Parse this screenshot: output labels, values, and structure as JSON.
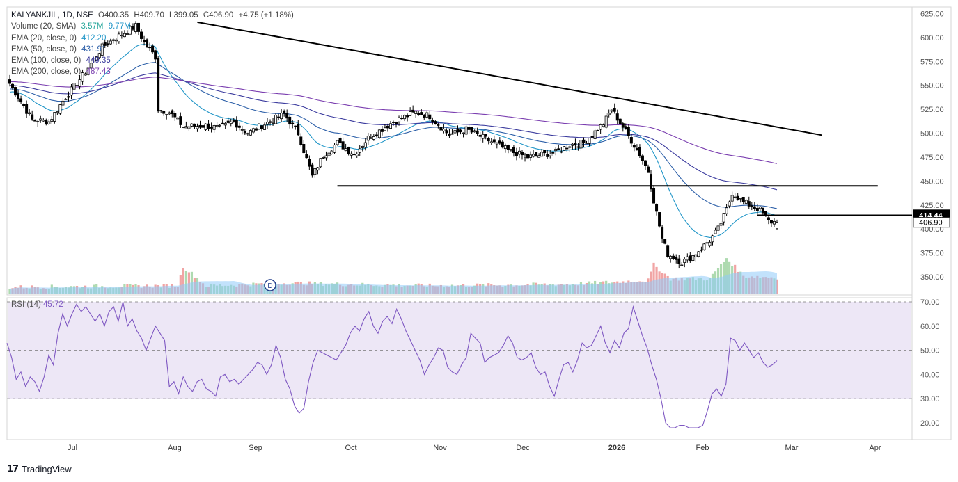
{
  "header": {
    "symbol": "KALYANKJIL, 1D, NSE",
    "open": "O400.35",
    "high": "H409.70",
    "low": "L399.05",
    "close": "C406.90",
    "change": "+4.75 (+1.18%)"
  },
  "legend": {
    "volume_label": "Volume (20, SMA)",
    "volume_val1": "3.57M",
    "volume_val2": "9.77M",
    "ema20_label": "EMA (20, close, 0)",
    "ema20_val": "412.20",
    "ema50_label": "EMA (50, close, 0)",
    "ema50_val": "431.91",
    "ema100_label": "EMA (100, close, 0)",
    "ema100_val": "449.35",
    "ema200_label": "EMA (200, close, 0)",
    "ema200_val": "487.43"
  },
  "rsi_legend": {
    "label": "RSI (14)",
    "value": "45.72"
  },
  "price_tags": {
    "level": "414.44",
    "last": "406.90"
  },
  "event_marker": "D",
  "footer": {
    "brand": "TradingView"
  },
  "colors": {
    "up_candle": "#ffffff",
    "down_candle": "#000000",
    "ema20": "#2196c8",
    "ema50": "#2c5fa8",
    "ema100": "#3b3b9e",
    "ema200": "#7b3fb0",
    "rsi_line": "#7e57c2",
    "rsi_band": "#ede7f6",
    "vol_up": "#a5d6a7",
    "vol_down": "#ef9a9a",
    "vol_sma": "#90caf9"
  },
  "chart_data": [
    {
      "type": "candlestick",
      "title": "KALYANKJIL, 1D, NSE",
      "ylim": [
        336,
        628
      ],
      "y_ticks": [
        "625.00",
        "600.00",
        "575.00",
        "550.00",
        "525.00",
        "500.00",
        "475.00",
        "450.00",
        "425.00",
        "400.00",
        "375.00",
        "350.00"
      ],
      "x_ticks": [
        "Jul",
        "Aug",
        "Sep",
        "Oct",
        "Nov",
        "Dec",
        "2026",
        "Feb",
        "Mar",
        "Apr"
      ],
      "anchors_close": [
        [
          0,
          552
        ],
        [
          8,
          514
        ],
        [
          14,
          512
        ],
        [
          20,
          538
        ],
        [
          26,
          560
        ],
        [
          33,
          590
        ],
        [
          38,
          600
        ],
        [
          45,
          612
        ],
        [
          48,
          595
        ],
        [
          52,
          580
        ],
        [
          53,
          525
        ],
        [
          57,
          522
        ],
        [
          62,
          507
        ],
        [
          70,
          508
        ],
        [
          75,
          505
        ],
        [
          80,
          512
        ],
        [
          85,
          500
        ],
        [
          90,
          508
        ],
        [
          98,
          520
        ],
        [
          103,
          500
        ],
        [
          108,
          455
        ],
        [
          112,
          477
        ],
        [
          117,
          490
        ],
        [
          123,
          478
        ],
        [
          128,
          495
        ],
        [
          137,
          512
        ],
        [
          145,
          522
        ],
        [
          150,
          518
        ],
        [
          157,
          498
        ],
        [
          163,
          504
        ],
        [
          170,
          494
        ],
        [
          178,
          482
        ],
        [
          185,
          475
        ],
        [
          195,
          480
        ],
        [
          200,
          488
        ],
        [
          205,
          490
        ],
        [
          212,
          510
        ],
        [
          215,
          525
        ],
        [
          220,
          502
        ],
        [
          225,
          478
        ],
        [
          228,
          460
        ],
        [
          230,
          430
        ],
        [
          233,
          390
        ],
        [
          235,
          374
        ],
        [
          240,
          365
        ],
        [
          244,
          372
        ],
        [
          250,
          388
        ],
        [
          253,
          400
        ],
        [
          256,
          420
        ],
        [
          258,
          438
        ],
        [
          262,
          428
        ],
        [
          268,
          420
        ],
        [
          271,
          408
        ],
        [
          274,
          406.9
        ]
      ],
      "anchors_volume": [
        [
          0,
          4
        ],
        [
          60,
          5
        ],
        [
          62,
          19
        ],
        [
          70,
          5
        ],
        [
          100,
          7
        ],
        [
          120,
          6
        ],
        [
          150,
          5
        ],
        [
          200,
          6
        ],
        [
          228,
          9
        ],
        [
          230,
          20
        ],
        [
          236,
          10
        ],
        [
          250,
          10
        ],
        [
          256,
          25
        ],
        [
          262,
          12
        ],
        [
          274,
          11
        ]
      ],
      "ema": [
        {
          "name": "EMA (20, close, 0)",
          "value": 412.2
        },
        {
          "name": "EMA (50, close, 0)",
          "value": 431.91
        },
        {
          "name": "EMA (100, close, 0)",
          "value": 449.35
        },
        {
          "name": "EMA (200, close, 0)",
          "value": 487.43
        }
      ],
      "lines": {
        "downtrend": [
          [
            67,
            616
          ],
          [
            290,
            498
          ]
        ],
        "support": [
          [
            117,
            445
          ],
          [
            310,
            445
          ]
        ],
        "resistance_level": [
          [
            267,
            414.44
          ],
          [
            320,
            414.44
          ]
        ]
      }
    },
    {
      "type": "line",
      "title": "RSI (14)",
      "ylim": [
        14,
        72
      ],
      "y_ticks": [
        "70.00",
        "60.00",
        "50.00",
        "40.00",
        "30.00",
        "20.00"
      ],
      "bands": [
        30,
        50,
        70
      ],
      "series": [
        {
          "name": "RSI (14)",
          "values": [
            53,
            47,
            38,
            41,
            35,
            39,
            37,
            33,
            39,
            48,
            44,
            57,
            65,
            60,
            65,
            69,
            66,
            68,
            65,
            62,
            65,
            60,
            66,
            68,
            62,
            70,
            60,
            63,
            58,
            55,
            50,
            55,
            60,
            57,
            54,
            35,
            37,
            32,
            39,
            35,
            33,
            37,
            38,
            34,
            33,
            31,
            39,
            40,
            37,
            38,
            36,
            38,
            40,
            42,
            45,
            44,
            40,
            44,
            52,
            47,
            38,
            34,
            27,
            24,
            26,
            37,
            45,
            50,
            49,
            48,
            47,
            46,
            49,
            52,
            57,
            60,
            58,
            63,
            66,
            60,
            57,
            62,
            64,
            61,
            67,
            63,
            58,
            54,
            50,
            46,
            40,
            44,
            47,
            51,
            50,
            43,
            41,
            40,
            44,
            47,
            57,
            55,
            53,
            45,
            47,
            48,
            49,
            52,
            56,
            53,
            47,
            46,
            47,
            49,
            43,
            40,
            41,
            35,
            31,
            38,
            44,
            45,
            41,
            46,
            53,
            51,
            52,
            56,
            60,
            53,
            49,
            54,
            51,
            57,
            59,
            68,
            62,
            56,
            51,
            44,
            38,
            30,
            20,
            18,
            18,
            19,
            19,
            18,
            18,
            18,
            19,
            25,
            32,
            34,
            31,
            36,
            55,
            54,
            50,
            53,
            50,
            47,
            49,
            45,
            43,
            44,
            45.72
          ]
        }
      ]
    }
  ]
}
